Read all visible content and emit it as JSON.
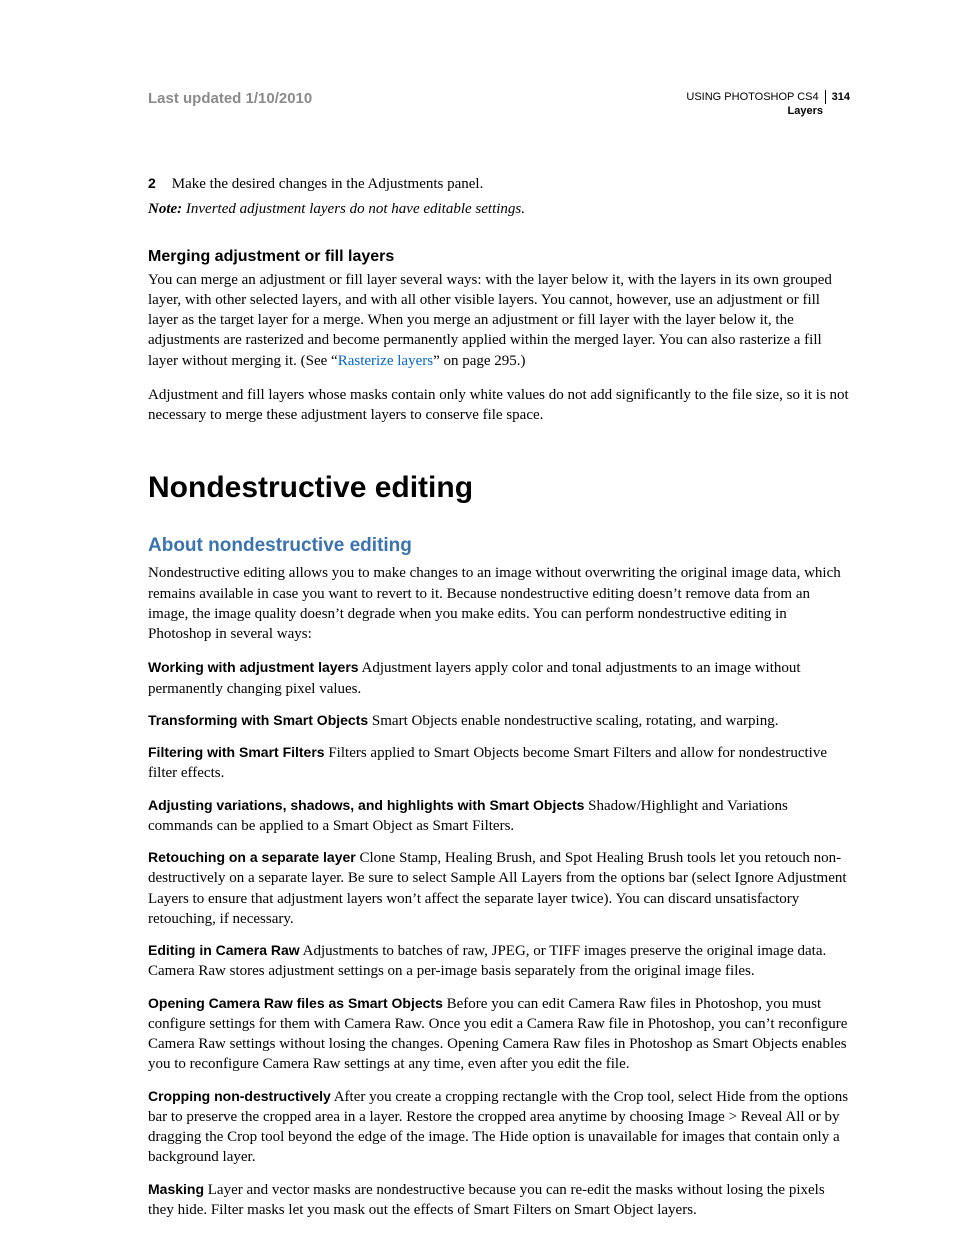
{
  "header": {
    "last_updated": "Last updated 1/10/2010",
    "doc_title": "USING PHOTOSHOP CS4",
    "page_number": "314",
    "section": "Layers"
  },
  "step": {
    "num": "2",
    "text": "Make the desired changes in the Adjustments panel."
  },
  "note": {
    "label": "Note:",
    "text": "Inverted adjustment layers do not have editable settings."
  },
  "merging": {
    "heading": "Merging adjustment or fill layers",
    "p1a": "You can merge an adjustment or fill layer several ways: with the layer below it, with the layers in its own grouped layer, with other selected layers, and with all other visible layers. You cannot, however, use an adjustment or fill layer as the target layer for a merge. When you merge an adjustment or fill layer with the layer below it, the adjustments are rasterized and become permanently applied within the merged layer. You can also rasterize a fill layer without merging it. (See “",
    "link": "Rasterize layers",
    "p1b": "” on page 295.)",
    "p2": "Adjustment and fill layers whose masks contain only white values do not add significantly to the file size, so it is not necessary to merge these adjustment layers to conserve file space."
  },
  "nd": {
    "h1": "Nondestructive editing",
    "h2": "About nondestructive editing",
    "intro": "Nondestructive editing allows you to make changes to an image without overwriting the original image data, which remains available in case you want to revert to it. Because nondestructive editing doesn’t remove data from an image, the image quality doesn’t degrade when you make edits. You can perform nondestructive editing in Photoshop in several ways:",
    "items": [
      {
        "runin": "Working with adjustment layers",
        "text": "  Adjustment layers apply color and tonal adjustments to an image without permanently changing pixel values."
      },
      {
        "runin": "Transforming with Smart Objects",
        "text": "  Smart Objects enable nondestructive scaling, rotating, and warping."
      },
      {
        "runin": "Filtering with Smart Filters",
        "text": "  Filters applied to Smart Objects become Smart Filters and allow for nondestructive filter effects."
      },
      {
        "runin": "Adjusting variations, shadows, and highlights with Smart Objects",
        "text": "  Shadow/Highlight and Variations commands can be applied to a Smart Object as Smart Filters."
      },
      {
        "runin": "Retouching on a separate layer",
        "text": "  Clone Stamp, Healing Brush, and Spot Healing Brush tools let you retouch non-destructively on a separate layer. Be sure to select Sample All Layers from the options bar (select Ignore Adjustment Layers to ensure that adjustment layers won’t affect the separate layer twice). You can discard unsatisfactory retouching, if necessary."
      },
      {
        "runin": "Editing in Camera Raw",
        "text": "  Adjustments to batches of raw, JPEG, or TIFF images preserve the original image data. Camera Raw stores adjustment settings on a per-image basis separately from the original image files."
      },
      {
        "runin": "Opening Camera Raw files as Smart Objects",
        "text": "  Before you can edit Camera Raw files in Photoshop, you must configure settings for them with Camera Raw. Once you edit a Camera Raw file in Photoshop, you can’t reconfigure Camera Raw settings without losing the changes. Opening Camera Raw files in Photoshop as Smart Objects enables you to reconfigure Camera Raw settings at any time, even after you edit the file."
      },
      {
        "runin": "Cropping non-destructively",
        "text": "  After you create a cropping rectangle with the Crop tool, select Hide from the options bar to preserve the cropped area in a layer. Restore the cropped area anytime by choosing Image > Reveal All or by dragging the Crop tool beyond the edge of the image. The Hide option is unavailable for images that contain only a background layer."
      },
      {
        "runin": "Masking",
        "text": "  Layer and vector masks are nondestructive because you can re-edit the masks without losing the pixels they hide. Filter masks let you mask out the effects of Smart Filters on Smart Object layers."
      }
    ]
  },
  "colors": {
    "link": "#0066cc",
    "h2": "#3b73af",
    "muted": "#8b8b8b"
  }
}
